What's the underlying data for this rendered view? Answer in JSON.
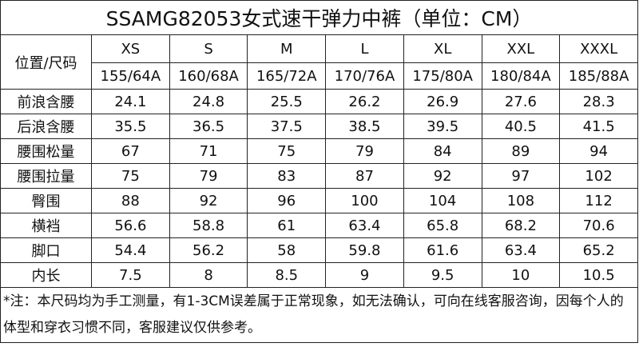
{
  "title": "SSAMG82053女式速干弹力中裤（单位：CM）",
  "header": {
    "label": "位置/尺码",
    "sizes": [
      "XS",
      "S",
      "M",
      "L",
      "XL",
      "XXL",
      "XXXL"
    ],
    "codes": [
      "155/64A",
      "160/68A",
      "165/72A",
      "170/76A",
      "175/80A",
      "180/84A",
      "185/88A"
    ]
  },
  "rows": [
    {
      "name": "前浪含腰",
      "values": [
        24.1,
        24.8,
        25.5,
        26.2,
        26.9,
        27.6,
        28.3
      ]
    },
    {
      "name": "后浪含腰",
      "values": [
        35.5,
        36.5,
        37.5,
        38.5,
        39.5,
        40.5,
        41.5
      ]
    },
    {
      "name": "腰围松量",
      "values": [
        67,
        71,
        75,
        79,
        84,
        89,
        94
      ]
    },
    {
      "name": "腰围拉量",
      "values": [
        75,
        79,
        83,
        87,
        92,
        97,
        102
      ]
    },
    {
      "name": "臀围",
      "values": [
        88,
        92,
        96,
        100,
        104,
        108,
        112
      ]
    },
    {
      "name": "横裆",
      "values": [
        56.6,
        58.8,
        61,
        63.4,
        65.8,
        68.2,
        70.6
      ]
    },
    {
      "name": "脚口",
      "values": [
        54.4,
        56.2,
        58,
        59.8,
        61.6,
        63.4,
        65.2
      ]
    },
    {
      "name": "内长",
      "values": [
        7.5,
        8,
        8.5,
        9,
        9.5,
        10,
        10.5
      ]
    }
  ],
  "note": "*注：本尺码均为手工测量，有1-3CM误差属于正常现象，如无法确认，可向在线客服咨询，因每个人的体型和穿衣习惯不同，客服建议仅供参考。"
}
